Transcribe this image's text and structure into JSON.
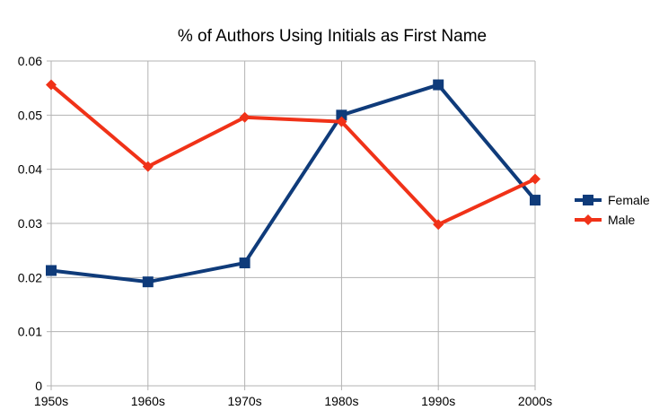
{
  "chart_data": {
    "type": "line",
    "title": "% of Authors Using Initials as First Name",
    "xlabel": "",
    "ylabel": "",
    "categories": [
      "1950s",
      "1960s",
      "1970s",
      "1980s",
      "1990s",
      "2000s"
    ],
    "ylim": [
      0,
      0.06
    ],
    "yticks": [
      "0",
      "0.01",
      "0.02",
      "0.03",
      "0.04",
      "0.05",
      "0.06"
    ],
    "grid": true,
    "legend_position": "right",
    "series": [
      {
        "name": "Female",
        "color": "#0f3b7a",
        "marker": "square",
        "values": [
          0.0213,
          0.0192,
          0.0227,
          0.05,
          0.0556,
          0.0343
        ]
      },
      {
        "name": "Male",
        "color": "#f03218",
        "marker": "diamond",
        "values": [
          0.0556,
          0.0405,
          0.0496,
          0.0488,
          0.0298,
          0.0382
        ]
      }
    ]
  }
}
